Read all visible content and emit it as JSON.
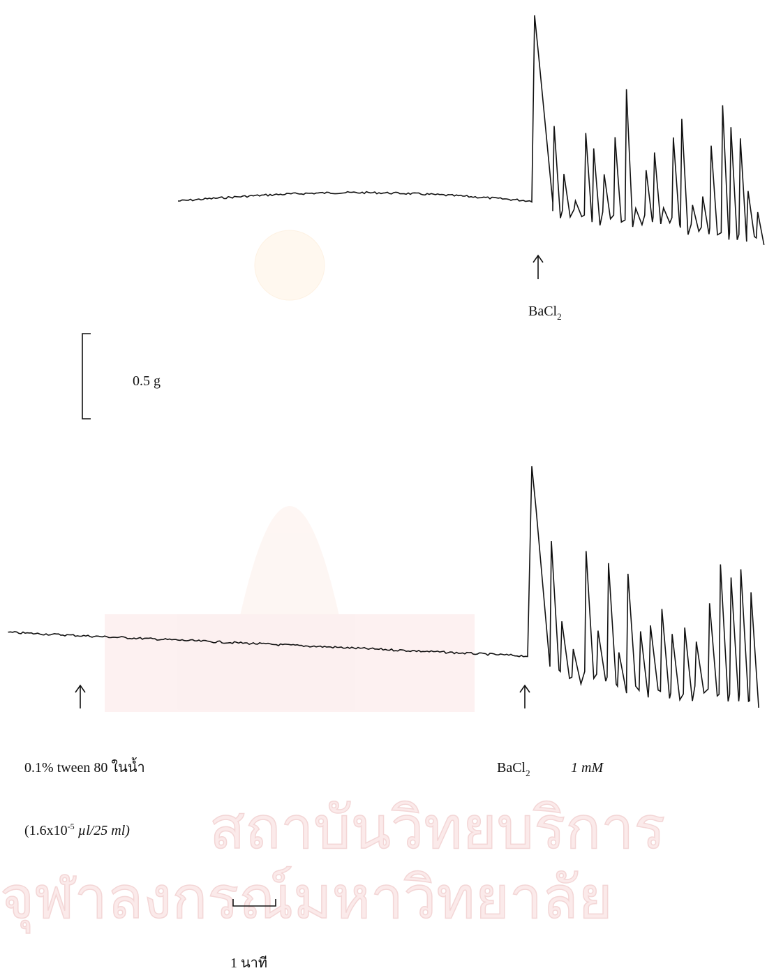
{
  "top_trace": {
    "marker": {
      "main": "BaCl",
      "sub": "2"
    }
  },
  "scale_bar": {
    "label": "0.5 g"
  },
  "bottom_trace": {
    "marker_1": {
      "line_1": "0.1% tween 80 ในน้ำ",
      "line_2": {
        "before": "(1.6x10",
        "sup": "-5",
        "after": " µl/25 ml)"
      }
    },
    "marker_2": {
      "main": "BaCl",
      "sub": "2",
      "conc": "1 mM"
    }
  },
  "time_bar": {
    "label": "1 นาที"
  },
  "watermark": {
    "line_1": "สถาบันวิทยบริการ",
    "line_2": "จุฬาลงกรณ์มหาวิทยาลัย"
  }
}
